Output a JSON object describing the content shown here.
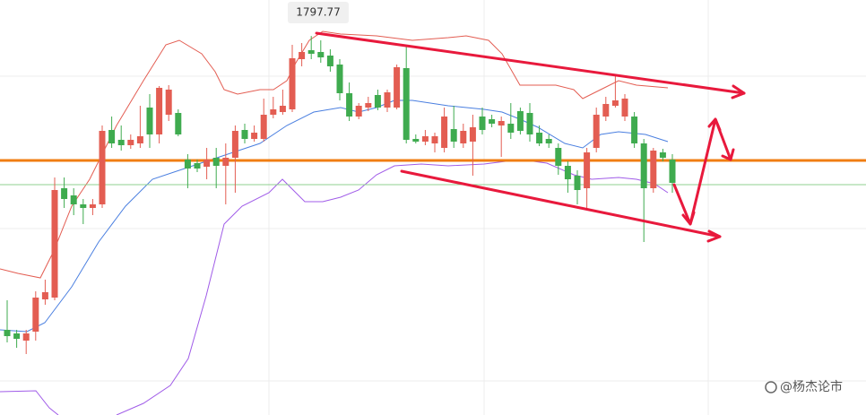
{
  "chart_data": {
    "type": "candlestick",
    "up_color": "#e35d52",
    "down_color": "#3fab4f",
    "ylim": [
      1713.2,
      1805.8
    ],
    "ohlc": [
      [
        1732.2,
        1738.8,
        1729.4,
        1730.8
      ],
      [
        1731.4,
        1732.2,
        1728.2,
        1730.2
      ],
      [
        1729.8,
        1732.2,
        1726.8,
        1731.4
      ],
      [
        1731.8,
        1740.8,
        1729.8,
        1739.4
      ],
      [
        1739.0,
        1743.4,
        1737.8,
        1740.6
      ],
      [
        1739.4,
        1766.2,
        1738.8,
        1763.4
      ],
      [
        1763.8,
        1766.2,
        1759.4,
        1761.4
      ],
      [
        1762.2,
        1763.8,
        1757.8,
        1760.2
      ],
      [
        1760.2,
        1761.4,
        1755.8,
        1759.4
      ],
      [
        1759.4,
        1761.4,
        1757.8,
        1760.2
      ],
      [
        1760.2,
        1777.8,
        1759.4,
        1776.6
      ],
      [
        1776.8,
        1779.8,
        1772.8,
        1773.8
      ],
      [
        1774.6,
        1777.8,
        1772.2,
        1773.4
      ],
      [
        1773.4,
        1775.8,
        1772.6,
        1774.6
      ],
      [
        1773.8,
        1782.2,
        1772.8,
        1775.4
      ],
      [
        1781.8,
        1784.8,
        1772.8,
        1775.8
      ],
      [
        1775.8,
        1786.6,
        1773.8,
        1786.2
      ],
      [
        1780.2,
        1786.8,
        1778.8,
        1785.8
      ],
      [
        1780.6,
        1781.4,
        1775.4,
        1775.8
      ],
      [
        1770.2,
        1771.4,
        1763.8,
        1768.2
      ],
      [
        1769.4,
        1770.2,
        1767.4,
        1768.2
      ],
      [
        1768.6,
        1772.8,
        1765.8,
        1770.2
      ],
      [
        1770.6,
        1772.8,
        1763.8,
        1768.8
      ],
      [
        1768.8,
        1773.8,
        1760.2,
        1770.6
      ],
      [
        1770.6,
        1777.8,
        1762.8,
        1776.6
      ],
      [
        1776.8,
        1778.2,
        1773.8,
        1774.8
      ],
      [
        1774.8,
        1777.8,
        1774.2,
        1776.2
      ],
      [
        1774.8,
        1783.8,
        1774.2,
        1780.2
      ],
      [
        1780.2,
        1784.2,
        1779.4,
        1781.4
      ],
      [
        1780.8,
        1785.8,
        1780.2,
        1782.2
      ],
      [
        1781.4,
        1795.8,
        1780.8,
        1792.8
      ],
      [
        1792.6,
        1796.2,
        1791.0,
        1794.2
      ],
      [
        1794.6,
        1797.77,
        1792.6,
        1793.8
      ],
      [
        1794.2,
        1796.8,
        1791.8,
        1793.0
      ],
      [
        1793.4,
        1794.8,
        1789.8,
        1791.0
      ],
      [
        1791.4,
        1792.6,
        1783.4,
        1785.0
      ],
      [
        1785.0,
        1787.4,
        1778.8,
        1779.8
      ],
      [
        1779.8,
        1782.8,
        1779.2,
        1782.2
      ],
      [
        1781.8,
        1784.2,
        1781.0,
        1782.8
      ],
      [
        1784.6,
        1785.8,
        1781.2,
        1781.8
      ],
      [
        1781.8,
        1785.8,
        1780.8,
        1785.2
      ],
      [
        1781.8,
        1791.4,
        1781.4,
        1790.8
      ],
      [
        1790.6,
        1795.8,
        1773.8,
        1774.6
      ],
      [
        1774.8,
        1775.8,
        1773.8,
        1774.2
      ],
      [
        1774.2,
        1776.8,
        1773.4,
        1775.4
      ],
      [
        1773.8,
        1776.2,
        1771.8,
        1775.4
      ],
      [
        1772.8,
        1781.8,
        1771.8,
        1779.8
      ],
      [
        1777.0,
        1782.2,
        1772.8,
        1774.2
      ],
      [
        1773.8,
        1778.2,
        1772.8,
        1776.6
      ],
      [
        1774.2,
        1780.2,
        1766.6,
        1777.4
      ],
      [
        1779.8,
        1781.8,
        1775.8,
        1776.8
      ],
      [
        1779.2,
        1780.2,
        1777.4,
        1778.2
      ],
      [
        1777.8,
        1779.8,
        1770.8,
        1778.8
      ],
      [
        1778.2,
        1782.8,
        1774.8,
        1776.2
      ],
      [
        1781.0,
        1781.8,
        1775.8,
        1776.6
      ],
      [
        1780.6,
        1782.8,
        1774.2,
        1775.8
      ],
      [
        1776.2,
        1777.8,
        1773.2,
        1773.8
      ],
      [
        1774.8,
        1775.8,
        1772.8,
        1773.8
      ],
      [
        1772.8,
        1773.8,
        1766.8,
        1768.8
      ],
      [
        1768.8,
        1769.8,
        1762.8,
        1765.8
      ],
      [
        1766.6,
        1767.8,
        1760.2,
        1763.4
      ],
      [
        1763.8,
        1772.8,
        1759.4,
        1771.8
      ],
      [
        1772.8,
        1781.8,
        1771.8,
        1780.2
      ],
      [
        1779.8,
        1784.2,
        1778.8,
        1782.6
      ],
      [
        1782.2,
        1788.8,
        1781.8,
        1783.4
      ],
      [
        1779.8,
        1784.8,
        1778.8,
        1783.8
      ],
      [
        1779.8,
        1780.8,
        1772.8,
        1773.8
      ],
      [
        1773.8,
        1774.8,
        1751.8,
        1763.8
      ],
      [
        1763.8,
        1772.8,
        1762.8,
        1772.2
      ],
      [
        1771.8,
        1772.6,
        1769.8,
        1770.6
      ],
      [
        1770.2,
        1771.4,
        1762.8,
        1765.0
      ]
    ],
    "levels": [
      {
        "value": 1770.0,
        "color": "#f07d12"
      },
      {
        "value": 1764.6,
        "color": "#8fd18f"
      }
    ],
    "high_label_index": 32,
    "watermark": "@杨杰论市"
  }
}
